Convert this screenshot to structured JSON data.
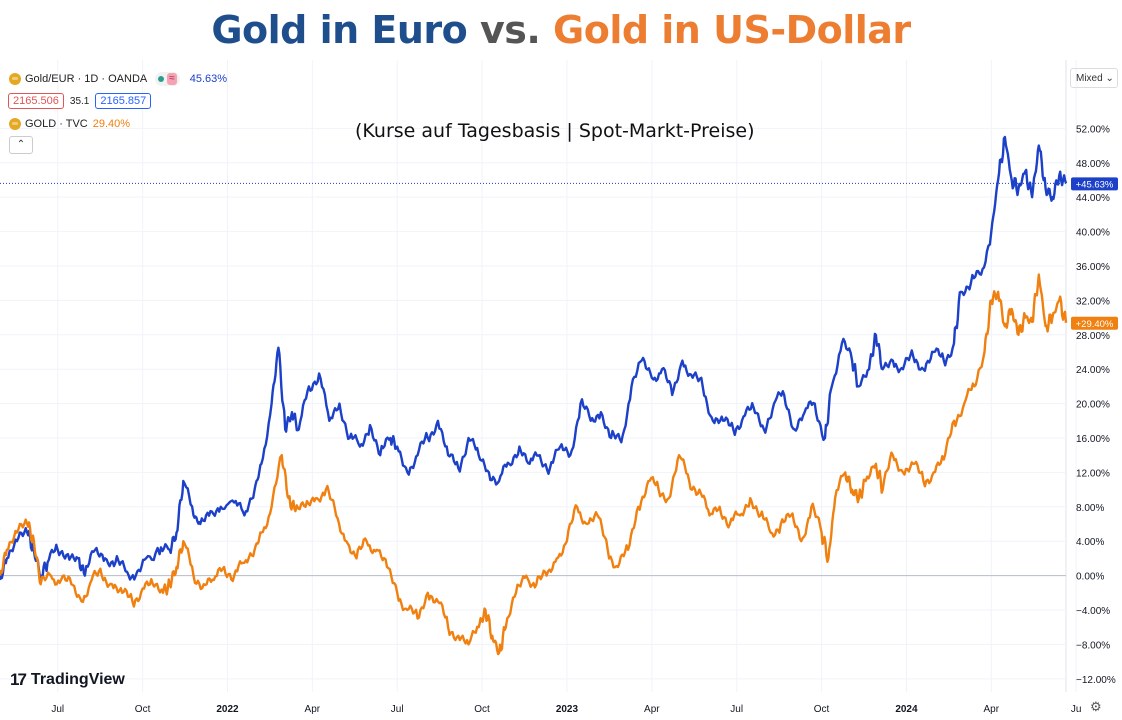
{
  "title": {
    "part1": "Gold in Euro",
    "vs": " vs. ",
    "part2": "Gold in US-Dollar"
  },
  "subtitle": "(Kurse auf Tagesbasis | Spot-Markt-Preise)",
  "legend": {
    "eur_label": "Gold/EUR · 1D · OANDA",
    "eur_change": "45.63%",
    "bid": "2165.506",
    "spread": "35.1",
    "ask": "2165.857",
    "usd_label": "GOLD · TVC",
    "usd_change": "29.40%",
    "wave_glyph": "≈",
    "collapse_glyph": "⌃"
  },
  "controls": {
    "mixed": "Mixed",
    "mixed_arrow": "⌄"
  },
  "branding": {
    "logo_mark": "17",
    "logo_text": "TradingView"
  },
  "icons": {
    "settings": "settings-gear-icon"
  },
  "colors": {
    "eur": "#1c40c8",
    "usd": "#f08010",
    "title_eur": "#1f4e8c",
    "title_usd": "#ed7d31"
  },
  "chart_data": {
    "type": "line",
    "yticks": [
      "52.00%",
      "48.00%",
      "44.00%",
      "40.00%",
      "36.00%",
      "32.00%",
      "28.00%",
      "24.00%",
      "20.00%",
      "16.00%",
      "12.00%",
      "8.00%",
      "4.00%",
      "0.00%",
      "−4.00%",
      "−8.00%",
      "−12.00%"
    ],
    "ytick_values": [
      52,
      48,
      44,
      40,
      36,
      32,
      28,
      24,
      20,
      16,
      12,
      8,
      4,
      0,
      -4,
      -8,
      -12
    ],
    "xticks": [
      {
        "label": "Jul",
        "t": 2021.5
      },
      {
        "label": "Oct",
        "t": 2021.75
      },
      {
        "label": "2022",
        "t": 2022.0
      },
      {
        "label": "Apr",
        "t": 2022.25
      },
      {
        "label": "Jul",
        "t": 2022.5
      },
      {
        "label": "Oct",
        "t": 2022.75
      },
      {
        "label": "2023",
        "t": 2023.0
      },
      {
        "label": "Apr",
        "t": 2023.25
      },
      {
        "label": "Jul",
        "t": 2023.5
      },
      {
        "label": "Oct",
        "t": 2023.75
      },
      {
        "label": "2024",
        "t": 2024.0
      },
      {
        "label": "Apr",
        "t": 2024.25
      },
      {
        "label": "Ju",
        "t": 2024.5
      }
    ],
    "x_range": [
      2021.33,
      2024.47
    ],
    "y_range": [
      -13.3,
      55.3
    ],
    "last_values": {
      "eur": "+45.63%",
      "usd": "+29.40%"
    },
    "series": [
      {
        "key": "eur",
        "color": "#1c40c8",
        "points": [
          [
            2021.33,
            -0.5
          ],
          [
            2021.35,
            2
          ],
          [
            2021.38,
            4
          ],
          [
            2021.41,
            5
          ],
          [
            2021.43,
            3
          ],
          [
            2021.45,
            0
          ],
          [
            2021.47,
            1.5
          ],
          [
            2021.5,
            3
          ],
          [
            2021.53,
            2.5
          ],
          [
            2021.56,
            2
          ],
          [
            2021.58,
            0
          ],
          [
            2021.61,
            3
          ],
          [
            2021.64,
            2
          ],
          [
            2021.67,
            1.5
          ],
          [
            2021.7,
            0.5
          ],
          [
            2021.73,
            0
          ],
          [
            2021.76,
            2
          ],
          [
            2021.8,
            2.5
          ],
          [
            2021.83,
            3
          ],
          [
            2021.85,
            5
          ],
          [
            2021.87,
            11
          ],
          [
            2021.9,
            7
          ],
          [
            2021.92,
            6
          ],
          [
            2021.95,
            7.5
          ],
          [
            2021.98,
            8
          ],
          [
            2022.02,
            8.5
          ],
          [
            2022.05,
            7
          ],
          [
            2022.08,
            10
          ],
          [
            2022.1,
            13
          ],
          [
            2022.13,
            20
          ],
          [
            2022.15,
            26.5
          ],
          [
            2022.17,
            17
          ],
          [
            2022.19,
            19
          ],
          [
            2022.21,
            17
          ],
          [
            2022.24,
            22
          ],
          [
            2022.27,
            23.5
          ],
          [
            2022.3,
            18
          ],
          [
            2022.33,
            20
          ],
          [
            2022.36,
            16
          ],
          [
            2022.39,
            15
          ],
          [
            2022.42,
            17.5
          ],
          [
            2022.45,
            14
          ],
          [
            2022.48,
            16
          ],
          [
            2022.5,
            15
          ],
          [
            2022.53,
            12
          ],
          [
            2022.56,
            14
          ],
          [
            2022.59,
            16
          ],
          [
            2022.62,
            18
          ],
          [
            2022.65,
            14
          ],
          [
            2022.68,
            12.5
          ],
          [
            2022.71,
            16
          ],
          [
            2022.74,
            14
          ],
          [
            2022.77,
            12
          ],
          [
            2022.8,
            11
          ],
          [
            2022.83,
            13
          ],
          [
            2022.86,
            15
          ],
          [
            2022.89,
            13
          ],
          [
            2022.92,
            14
          ],
          [
            2022.95,
            12.5
          ],
          [
            2022.98,
            15
          ],
          [
            2023.01,
            14
          ],
          [
            2023.04,
            20
          ],
          [
            2023.07,
            18
          ],
          [
            2023.1,
            19
          ],
          [
            2023.13,
            16
          ],
          [
            2023.16,
            15.5
          ],
          [
            2023.19,
            22
          ],
          [
            2023.22,
            25
          ],
          [
            2023.25,
            23
          ],
          [
            2023.28,
            24
          ],
          [
            2023.31,
            21
          ],
          [
            2023.34,
            25
          ],
          [
            2023.37,
            23
          ],
          [
            2023.4,
            22
          ],
          [
            2023.43,
            18
          ],
          [
            2023.46,
            18
          ],
          [
            2023.49,
            17
          ],
          [
            2023.52,
            18.5
          ],
          [
            2023.55,
            19.5
          ],
          [
            2023.58,
            17
          ],
          [
            2023.61,
            20
          ],
          [
            2023.64,
            21
          ],
          [
            2023.67,
            17
          ],
          [
            2023.7,
            19
          ],
          [
            2023.73,
            20
          ],
          [
            2023.76,
            16
          ],
          [
            2023.78,
            22
          ],
          [
            2023.81,
            27
          ],
          [
            2023.84,
            25
          ],
          [
            2023.86,
            22
          ],
          [
            2023.89,
            24
          ],
          [
            2023.91,
            28
          ],
          [
            2023.93,
            24
          ],
          [
            2023.96,
            25
          ],
          [
            2023.99,
            24
          ],
          [
            2024.02,
            25.5
          ],
          [
            2024.05,
            24
          ],
          [
            2024.08,
            26
          ],
          [
            2024.11,
            25
          ],
          [
            2024.14,
            27
          ],
          [
            2024.16,
            33
          ],
          [
            2024.19,
            34
          ],
          [
            2024.22,
            35
          ],
          [
            2024.25,
            40
          ],
          [
            2024.27,
            46
          ],
          [
            2024.29,
            51
          ],
          [
            2024.31,
            46
          ],
          [
            2024.33,
            45
          ],
          [
            2024.35,
            47
          ],
          [
            2024.37,
            44
          ],
          [
            2024.39,
            50
          ],
          [
            2024.41,
            45
          ],
          [
            2024.43,
            44
          ],
          [
            2024.45,
            46.5
          ],
          [
            2024.47,
            45.6
          ]
        ]
      },
      {
        "key": "usd",
        "color": "#f08010",
        "points": [
          [
            2021.33,
            0
          ],
          [
            2021.35,
            3
          ],
          [
            2021.38,
            5
          ],
          [
            2021.41,
            6
          ],
          [
            2021.43,
            4
          ],
          [
            2021.45,
            -1
          ],
          [
            2021.48,
            0
          ],
          [
            2021.51,
            -0.5
          ],
          [
            2021.54,
            -1
          ],
          [
            2021.57,
            -3
          ],
          [
            2021.6,
            -0.5
          ],
          [
            2021.63,
            0
          ],
          [
            2021.66,
            -1
          ],
          [
            2021.69,
            -2
          ],
          [
            2021.72,
            -3
          ],
          [
            2021.75,
            -1.5
          ],
          [
            2021.78,
            -1
          ],
          [
            2021.81,
            -2
          ],
          [
            2021.83,
            -1
          ],
          [
            2021.85,
            1
          ],
          [
            2021.87,
            4
          ],
          [
            2021.9,
            0
          ],
          [
            2021.93,
            -1
          ],
          [
            2021.96,
            -0.5
          ],
          [
            2021.99,
            1
          ],
          [
            2022.02,
            0
          ],
          [
            2022.05,
            1.5
          ],
          [
            2022.08,
            3
          ],
          [
            2022.1,
            5
          ],
          [
            2022.13,
            8
          ],
          [
            2022.16,
            14
          ],
          [
            2022.18,
            9
          ],
          [
            2022.2,
            7.5
          ],
          [
            2022.23,
            8
          ],
          [
            2022.26,
            9
          ],
          [
            2022.29,
            10
          ],
          [
            2022.32,
            7
          ],
          [
            2022.35,
            4
          ],
          [
            2022.38,
            2
          ],
          [
            2022.41,
            4
          ],
          [
            2022.44,
            3
          ],
          [
            2022.47,
            1
          ],
          [
            2022.5,
            -2
          ],
          [
            2022.53,
            -4
          ],
          [
            2022.56,
            -5
          ],
          [
            2022.59,
            -2
          ],
          [
            2022.62,
            -3
          ],
          [
            2022.65,
            -6
          ],
          [
            2022.68,
            -7
          ],
          [
            2022.71,
            -8
          ],
          [
            2022.74,
            -6
          ],
          [
            2022.76,
            -4
          ],
          [
            2022.78,
            -7
          ],
          [
            2022.8,
            -9
          ],
          [
            2022.82,
            -6
          ],
          [
            2022.85,
            -2
          ],
          [
            2022.88,
            0
          ],
          [
            2022.91,
            -1
          ],
          [
            2022.94,
            0
          ],
          [
            2022.97,
            2
          ],
          [
            2023.0,
            4
          ],
          [
            2023.03,
            8
          ],
          [
            2023.06,
            6
          ],
          [
            2023.09,
            7
          ],
          [
            2023.12,
            3
          ],
          [
            2023.15,
            1
          ],
          [
            2023.18,
            3
          ],
          [
            2023.21,
            8
          ],
          [
            2023.24,
            11
          ],
          [
            2023.27,
            10
          ],
          [
            2023.3,
            9
          ],
          [
            2023.33,
            14
          ],
          [
            2023.36,
            11
          ],
          [
            2023.39,
            10
          ],
          [
            2023.42,
            7
          ],
          [
            2023.45,
            8
          ],
          [
            2023.48,
            6
          ],
          [
            2023.51,
            7
          ],
          [
            2023.54,
            9
          ],
          [
            2023.57,
            7
          ],
          [
            2023.6,
            5
          ],
          [
            2023.63,
            6
          ],
          [
            2023.66,
            7
          ],
          [
            2023.69,
            4
          ],
          [
            2023.72,
            8
          ],
          [
            2023.75,
            5
          ],
          [
            2023.77,
            2
          ],
          [
            2023.79,
            9
          ],
          [
            2023.82,
            12
          ],
          [
            2023.84,
            10
          ],
          [
            2023.86,
            9
          ],
          [
            2023.88,
            11
          ],
          [
            2023.91,
            13
          ],
          [
            2023.93,
            10
          ],
          [
            2023.96,
            14
          ],
          [
            2023.99,
            12
          ],
          [
            2024.02,
            13
          ],
          [
            2024.05,
            11
          ],
          [
            2024.08,
            12
          ],
          [
            2024.11,
            13.5
          ],
          [
            2024.14,
            18
          ],
          [
            2024.17,
            20
          ],
          [
            2024.2,
            22
          ],
          [
            2024.23,
            26
          ],
          [
            2024.25,
            32
          ],
          [
            2024.27,
            33
          ],
          [
            2024.29,
            29
          ],
          [
            2024.31,
            31
          ],
          [
            2024.33,
            28
          ],
          [
            2024.35,
            30
          ],
          [
            2024.37,
            29.5
          ],
          [
            2024.39,
            35
          ],
          [
            2024.41,
            29
          ],
          [
            2024.43,
            30
          ],
          [
            2024.45,
            32
          ],
          [
            2024.47,
            29.4
          ]
        ]
      }
    ]
  }
}
